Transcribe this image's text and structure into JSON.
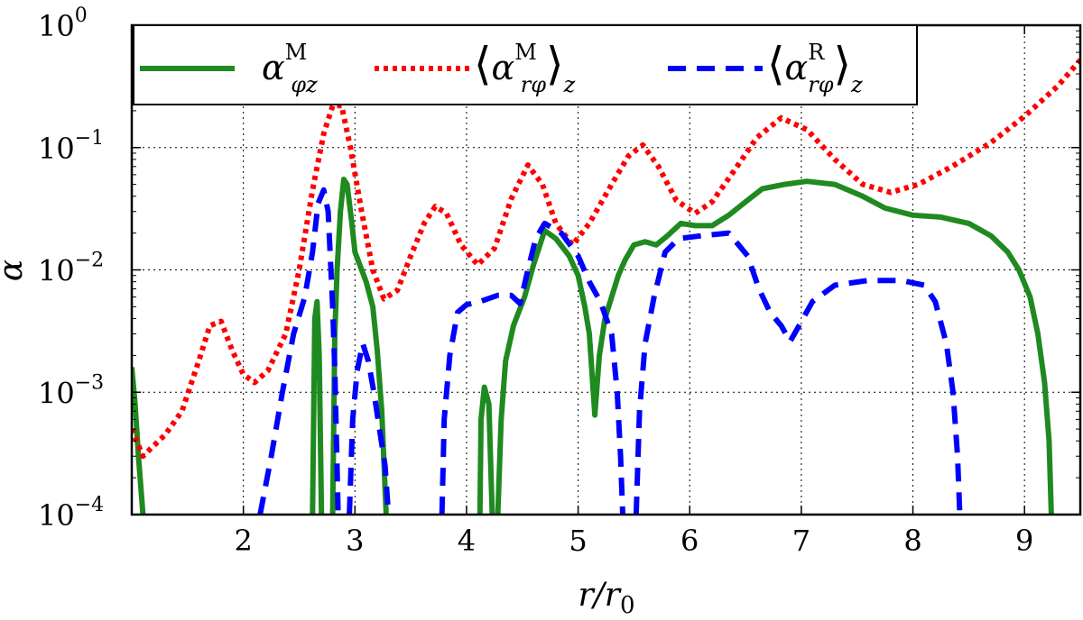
{
  "chart_data": {
    "type": "line",
    "title": "",
    "xlabel": "r/r",
    "xlabel_sub": "0",
    "ylabel": "α",
    "xlim": [
      1.0,
      9.5
    ],
    "ylim_log10": [
      -4,
      0
    ],
    "yscale": "log",
    "grid": true,
    "legend_position": "top-center",
    "x_ticks": [
      2,
      3,
      4,
      5,
      6,
      7,
      8,
      9
    ],
    "x_tick_labels": [
      "2",
      "3",
      "4",
      "5",
      "6",
      "7",
      "8",
      "9"
    ],
    "y_tick_exponents": [
      -4,
      -3,
      -2,
      -1,
      0
    ],
    "y_tick_labels": [
      {
        "base": "10",
        "exp": "−4"
      },
      {
        "base": "10",
        "exp": "−3"
      },
      {
        "base": "10",
        "exp": "−2"
      },
      {
        "base": "10",
        "exp": "−1"
      },
      {
        "base": "10",
        "exp": "0"
      }
    ],
    "series": [
      {
        "name": "alpha_phi_z_M",
        "legend": {
          "main": "α",
          "sup": "M",
          "sub": "φz",
          "brackets": false
        },
        "color": "#1f8a1f",
        "style": "solid",
        "segments": [
          [
            [
              1.0,
              0.0016
            ],
            [
              1.03,
              0.0008
            ],
            [
              1.06,
              0.0003
            ],
            [
              1.1,
              0.0001
            ]
          ],
          [
            [
              2.62,
              0.0001
            ],
            [
              2.64,
              0.004
            ],
            [
              2.66,
              0.0055
            ],
            [
              2.68,
              0.002
            ],
            [
              2.7,
              0.0001
            ]
          ],
          [
            [
              2.8,
              0.0001
            ],
            [
              2.82,
              0.003
            ],
            [
              2.84,
              0.01
            ],
            [
              2.87,
              0.03
            ],
            [
              2.9,
              0.055
            ],
            [
              2.93,
              0.05
            ],
            [
              2.97,
              0.025
            ],
            [
              3.0,
              0.014
            ],
            [
              3.1,
              0.008
            ],
            [
              3.16,
              0.005
            ],
            [
              3.2,
              0.0022
            ],
            [
              3.24,
              0.0007
            ],
            [
              3.28,
              0.0001
            ]
          ],
          [
            [
              4.12,
              0.0001
            ],
            [
              4.13,
              0.0006
            ],
            [
              4.16,
              0.0011
            ],
            [
              4.2,
              0.0008
            ],
            [
              4.23,
              0.0001
            ]
          ],
          [
            [
              4.28,
              0.0001
            ],
            [
              4.31,
              0.0006
            ],
            [
              4.35,
              0.0018
            ],
            [
              4.42,
              0.0035
            ],
            [
              4.52,
              0.006
            ],
            [
              4.6,
              0.011
            ],
            [
              4.7,
              0.021
            ],
            [
              4.8,
              0.018
            ],
            [
              4.92,
              0.013
            ],
            [
              5.0,
              0.009
            ],
            [
              5.06,
              0.005
            ],
            [
              5.1,
              0.003
            ],
            [
              5.15,
              0.00065
            ],
            [
              5.19,
              0.002
            ],
            [
              5.24,
              0.004
            ],
            [
              5.3,
              0.006
            ],
            [
              5.36,
              0.009
            ],
            [
              5.42,
              0.012
            ],
            [
              5.5,
              0.016
            ],
            [
              5.6,
              0.017
            ],
            [
              5.7,
              0.016
            ],
            [
              5.8,
              0.019
            ],
            [
              5.92,
              0.024
            ],
            [
              6.05,
              0.023
            ],
            [
              6.2,
              0.023
            ],
            [
              6.35,
              0.028
            ],
            [
              6.5,
              0.036
            ],
            [
              6.65,
              0.046
            ],
            [
              6.85,
              0.05
            ],
            [
              7.05,
              0.053
            ],
            [
              7.3,
              0.05
            ],
            [
              7.55,
              0.04
            ],
            [
              7.75,
              0.032
            ],
            [
              8.0,
              0.028
            ],
            [
              8.25,
              0.027
            ],
            [
              8.5,
              0.024
            ],
            [
              8.7,
              0.019
            ],
            [
              8.85,
              0.014
            ],
            [
              8.95,
              0.01
            ],
            [
              9.05,
              0.006
            ],
            [
              9.12,
              0.003
            ],
            [
              9.18,
              0.0012
            ],
            [
              9.22,
              0.0004
            ],
            [
              9.24,
              0.0001
            ]
          ]
        ]
      },
      {
        "name": "avg_alpha_r_phi_M",
        "legend": {
          "main": "α",
          "sup": "M",
          "sub": "rφ",
          "brackets": true,
          "outer_sub": "z"
        },
        "color": "#ff0000",
        "style": "dotted",
        "segments": [
          [
            [
              1.0,
              0.0005
            ],
            [
              1.1,
              0.0003
            ],
            [
              1.3,
              0.00045
            ],
            [
              1.45,
              0.0007
            ],
            [
              1.6,
              0.0018
            ],
            [
              1.7,
              0.0035
            ],
            [
              1.8,
              0.0038
            ],
            [
              1.9,
              0.0022
            ],
            [
              2.0,
              0.0014
            ],
            [
              2.1,
              0.0012
            ],
            [
              2.22,
              0.0015
            ],
            [
              2.38,
              0.003
            ],
            [
              2.5,
              0.01
            ],
            [
              2.62,
              0.045
            ],
            [
              2.72,
              0.13
            ],
            [
              2.8,
              0.22
            ],
            [
              2.88,
              0.22
            ],
            [
              2.96,
              0.1
            ],
            [
              3.06,
              0.03
            ],
            [
              3.16,
              0.01
            ],
            [
              3.26,
              0.0058
            ],
            [
              3.38,
              0.0068
            ],
            [
              3.5,
              0.013
            ],
            [
              3.62,
              0.024
            ],
            [
              3.72,
              0.033
            ],
            [
              3.82,
              0.029
            ],
            [
              3.95,
              0.016
            ],
            [
              4.1,
              0.011
            ],
            [
              4.25,
              0.015
            ],
            [
              4.4,
              0.038
            ],
            [
              4.55,
              0.072
            ],
            [
              4.68,
              0.05
            ],
            [
              4.8,
              0.024
            ],
            [
              4.95,
              0.016
            ],
            [
              5.1,
              0.024
            ],
            [
              5.3,
              0.05
            ],
            [
              5.45,
              0.085
            ],
            [
              5.58,
              0.105
            ],
            [
              5.72,
              0.07
            ],
            [
              5.88,
              0.037
            ],
            [
              6.05,
              0.029
            ],
            [
              6.2,
              0.036
            ],
            [
              6.4,
              0.065
            ],
            [
              6.6,
              0.12
            ],
            [
              6.82,
              0.175
            ],
            [
              7.05,
              0.14
            ],
            [
              7.3,
              0.08
            ],
            [
              7.55,
              0.05
            ],
            [
              7.8,
              0.043
            ],
            [
              8.05,
              0.05
            ],
            [
              8.35,
              0.07
            ],
            [
              8.7,
              0.11
            ],
            [
              9.0,
              0.18
            ],
            [
              9.3,
              0.32
            ],
            [
              9.5,
              0.52
            ]
          ]
        ]
      },
      {
        "name": "avg_alpha_r_phi_R",
        "legend": {
          "main": "α",
          "sup": "R",
          "sub": "rφ",
          "brackets": true,
          "outer_sub": "z"
        },
        "color": "#0000ff",
        "style": "dashed",
        "segments": [
          [
            [
              2.15,
              0.0001
            ],
            [
              2.25,
              0.0003
            ],
            [
              2.35,
              0.001
            ],
            [
              2.45,
              0.003
            ],
            [
              2.55,
              0.006
            ],
            [
              2.62,
              0.014
            ],
            [
              2.67,
              0.035
            ],
            [
              2.72,
              0.045
            ],
            [
              2.76,
              0.03
            ],
            [
              2.8,
              0.005
            ],
            [
              2.82,
              0.0015
            ],
            [
              2.85,
              0.0001
            ]
          ],
          [
            [
              2.95,
              0.0001
            ],
            [
              2.98,
              0.0006
            ],
            [
              3.02,
              0.0015
            ],
            [
              3.07,
              0.0025
            ],
            [
              3.12,
              0.0018
            ],
            [
              3.17,
              0.001
            ],
            [
              3.22,
              0.0005
            ],
            [
              3.27,
              0.00025
            ],
            [
              3.3,
              0.0001
            ]
          ],
          [
            [
              3.78,
              0.0001
            ],
            [
              3.8,
              0.0006
            ],
            [
              3.85,
              0.002
            ],
            [
              3.92,
              0.0045
            ],
            [
              4.0,
              0.0052
            ],
            [
              4.12,
              0.0055
            ],
            [
              4.28,
              0.0062
            ],
            [
              4.4,
              0.0062
            ],
            [
              4.48,
              0.0053
            ],
            [
              4.55,
              0.01
            ],
            [
              4.62,
              0.018
            ],
            [
              4.7,
              0.024
            ],
            [
              4.85,
              0.02
            ],
            [
              5.0,
              0.013
            ],
            [
              5.1,
              0.008
            ],
            [
              5.2,
              0.0055
            ],
            [
              5.3,
              0.003
            ],
            [
              5.35,
              0.001
            ],
            [
              5.38,
              0.0003
            ],
            [
              5.4,
              0.0001
            ]
          ],
          [
            [
              5.52,
              0.0001
            ],
            [
              5.55,
              0.0007
            ],
            [
              5.6,
              0.0025
            ],
            [
              5.68,
              0.006
            ],
            [
              5.78,
              0.014
            ],
            [
              5.9,
              0.018
            ],
            [
              6.1,
              0.019
            ],
            [
              6.35,
              0.02
            ],
            [
              6.52,
              0.013
            ],
            [
              6.62,
              0.007
            ],
            [
              6.72,
              0.0045
            ],
            [
              6.82,
              0.0035
            ],
            [
              6.9,
              0.0026
            ],
            [
              6.98,
              0.0035
            ],
            [
              7.1,
              0.0055
            ],
            [
              7.3,
              0.0075
            ],
            [
              7.6,
              0.0082
            ],
            [
              7.9,
              0.0082
            ],
            [
              8.1,
              0.0075
            ],
            [
              8.2,
              0.0055
            ],
            [
              8.3,
              0.0025
            ],
            [
              8.36,
              0.001
            ],
            [
              8.4,
              0.0003
            ],
            [
              8.42,
              0.0001
            ]
          ]
        ]
      }
    ]
  }
}
